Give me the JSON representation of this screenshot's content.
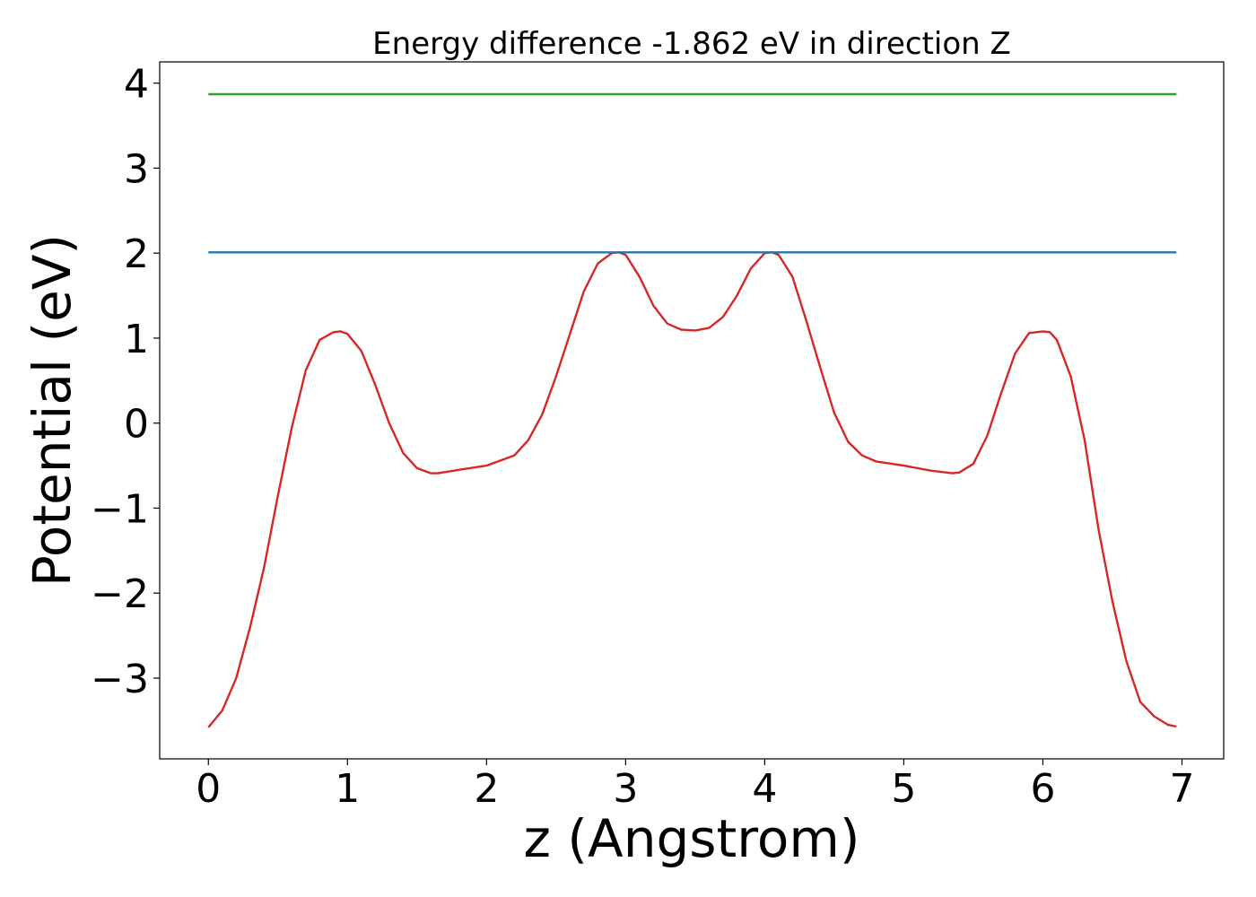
{
  "chart_data": {
    "type": "line",
    "title": "Energy difference -1.862 eV in direction Z",
    "xlabel": "z (Angstrom)",
    "ylabel": "Potential (eV)",
    "xlim": [
      -0.35,
      7.3
    ],
    "ylim": [
      -3.95,
      4.25
    ],
    "xticks": [
      0,
      1,
      2,
      3,
      4,
      5,
      6,
      7
    ],
    "yticks": [
      -3,
      -2,
      -1,
      0,
      1,
      2,
      3,
      4
    ],
    "xtick_labels": [
      "0",
      "1",
      "2",
      "3",
      "4",
      "5",
      "6",
      "7"
    ],
    "ytick_labels": [
      "−3",
      "−2",
      "−1",
      "0",
      "1",
      "2",
      "3",
      "4"
    ],
    "grid": false,
    "series": [
      {
        "color": "#d62728",
        "x": [
          0.0,
          0.1,
          0.2,
          0.3,
          0.4,
          0.5,
          0.6,
          0.7,
          0.8,
          0.9,
          0.95,
          1.0,
          1.1,
          1.2,
          1.3,
          1.4,
          1.5,
          1.6,
          1.65,
          1.8,
          2.0,
          2.2,
          2.3,
          2.4,
          2.5,
          2.6,
          2.7,
          2.8,
          2.9,
          2.95,
          3.0,
          3.1,
          3.2,
          3.3,
          3.4,
          3.5,
          3.6,
          3.7,
          3.8,
          3.9,
          4.0,
          4.05,
          4.1,
          4.2,
          4.3,
          4.4,
          4.5,
          4.6,
          4.7,
          4.8,
          5.0,
          5.2,
          5.35,
          5.4,
          5.5,
          5.6,
          5.7,
          5.8,
          5.9,
          6.0,
          6.05,
          6.1,
          6.2,
          6.3,
          6.4,
          6.5,
          6.6,
          6.7,
          6.8,
          6.9,
          6.96
        ],
        "y": [
          -3.58,
          -3.38,
          -3.0,
          -2.4,
          -1.7,
          -0.85,
          -0.05,
          0.62,
          0.98,
          1.07,
          1.08,
          1.05,
          0.85,
          0.45,
          0.0,
          -0.35,
          -0.53,
          -0.59,
          -0.59,
          -0.55,
          -0.5,
          -0.38,
          -0.2,
          0.1,
          0.55,
          1.05,
          1.55,
          1.88,
          2.0,
          2.01,
          1.98,
          1.72,
          1.38,
          1.17,
          1.1,
          1.09,
          1.12,
          1.25,
          1.5,
          1.82,
          2.0,
          2.01,
          1.98,
          1.72,
          1.2,
          0.65,
          0.12,
          -0.22,
          -0.38,
          -0.45,
          -0.5,
          -0.56,
          -0.59,
          -0.58,
          -0.48,
          -0.15,
          0.35,
          0.82,
          1.06,
          1.08,
          1.07,
          0.98,
          0.55,
          -0.2,
          -1.25,
          -2.1,
          -2.8,
          -3.28,
          -3.45,
          -3.55,
          -3.57
        ]
      },
      {
        "color": "#1f77b4",
        "x": [
          0.0,
          6.96
        ],
        "y": [
          2.01,
          2.01
        ]
      },
      {
        "color": "#2ca02c",
        "x": [
          0.0,
          6.96
        ],
        "y": [
          3.87,
          3.87
        ]
      }
    ]
  }
}
